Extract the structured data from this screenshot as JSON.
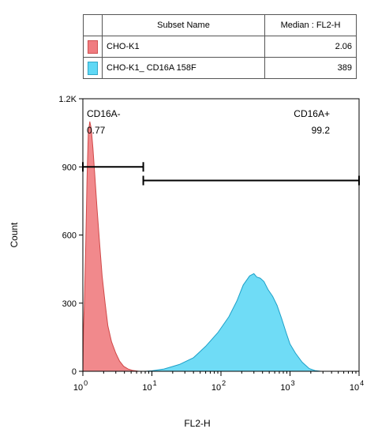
{
  "legend": {
    "header_name": "Subset Name",
    "header_value": "Median : FL2-H",
    "rows": [
      {
        "name": "CHO-K1",
        "value": "2.06",
        "color": "#f07c80",
        "border": "#d05050"
      },
      {
        "name": "CHO-K1_ CD16A 158F",
        "value": "389",
        "color": "#5fd8f5",
        "border": "#30a8c8"
      }
    ]
  },
  "chart_data": {
    "type": "area",
    "xlabel": "FL2-H",
    "ylabel": "Count",
    "x_scale": "log",
    "xlim": [
      1,
      10000
    ],
    "ylim": [
      0,
      1200
    ],
    "y_ticks": [
      {
        "value": 0,
        "label": "0"
      },
      {
        "value": 300,
        "label": "300"
      },
      {
        "value": 600,
        "label": "600"
      },
      {
        "value": 900,
        "label": "900"
      },
      {
        "value": 1200,
        "label": "1.2K"
      }
    ],
    "x_ticks": [
      {
        "value": 1,
        "base": "10",
        "exp": "0"
      },
      {
        "value": 10,
        "base": "10",
        "exp": "1"
      },
      {
        "value": 100,
        "base": "10",
        "exp": "2"
      },
      {
        "value": 1000,
        "base": "10",
        "exp": "3"
      },
      {
        "value": 10000,
        "base": "10",
        "exp": "4"
      }
    ],
    "series": [
      {
        "name": "CHO-K1",
        "color": "#f07c80",
        "stroke": "#d04848",
        "points": [
          [
            1,
            0
          ],
          [
            1.02,
            180
          ],
          [
            1.05,
            300
          ],
          [
            1.1,
            550
          ],
          [
            1.15,
            850
          ],
          [
            1.2,
            1050
          ],
          [
            1.26,
            1100
          ],
          [
            1.32,
            1070
          ],
          [
            1.4,
            980
          ],
          [
            1.5,
            850
          ],
          [
            1.6,
            720
          ],
          [
            1.75,
            560
          ],
          [
            1.9,
            420
          ],
          [
            2.1,
            300
          ],
          [
            2.3,
            200
          ],
          [
            2.6,
            130
          ],
          [
            3.0,
            80
          ],
          [
            3.4,
            45
          ],
          [
            3.9,
            22
          ],
          [
            4.5,
            10
          ],
          [
            5.2,
            4
          ],
          [
            6.5,
            0
          ]
        ]
      },
      {
        "name": "CHO-K1_ CD16A 158F",
        "color": "#5fd8f5",
        "stroke": "#1ea0c8",
        "points": [
          [
            8,
            0
          ],
          [
            10,
            2
          ],
          [
            15,
            10
          ],
          [
            25,
            30
          ],
          [
            40,
            60
          ],
          [
            60,
            110
          ],
          [
            90,
            170
          ],
          [
            130,
            240
          ],
          [
            170,
            310
          ],
          [
            210,
            380
          ],
          [
            260,
            420
          ],
          [
            300,
            430
          ],
          [
            330,
            415
          ],
          [
            370,
            410
          ],
          [
            420,
            395
          ],
          [
            480,
            360
          ],
          [
            560,
            330
          ],
          [
            650,
            290
          ],
          [
            760,
            230
          ],
          [
            880,
            170
          ],
          [
            1000,
            120
          ],
          [
            1200,
            80
          ],
          [
            1500,
            40
          ],
          [
            1900,
            12
          ],
          [
            2300,
            3
          ],
          [
            2800,
            0
          ]
        ]
      }
    ],
    "gates": [
      {
        "name": "CD16A-",
        "percent": "0.77",
        "x_start": 1,
        "x_end": 7.5,
        "y": 900
      },
      {
        "name": "CD16A+",
        "percent": "99.2",
        "x_start": 7.5,
        "x_end": 10000,
        "y": 840
      }
    ]
  }
}
